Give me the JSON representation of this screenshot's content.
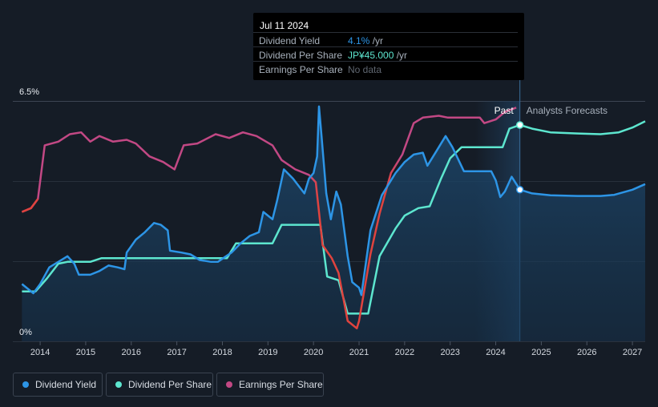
{
  "chart_data": {
    "type": "line",
    "title": "",
    "xlabel": "",
    "ylabel": "",
    "ylim": [
      0,
      6.5
    ],
    "y_tick_labels": [
      "6.5%",
      "0%"
    ],
    "x_ticks": [
      2014,
      2015,
      2016,
      2017,
      2018,
      2019,
      2020,
      2021,
      2022,
      2023,
      2024,
      2025,
      2026,
      2027
    ],
    "xlim": [
      2013.4,
      2027.28
    ],
    "grid": true,
    "past_label": "Past",
    "forecast_label": "Analysts Forecasts",
    "forecast_start": 2024.53,
    "series": [
      {
        "name": "Dividend Yield",
        "color": "#2d95e6",
        "unit": "%",
        "points": [
          [
            2013.6,
            1.55
          ],
          [
            2013.85,
            1.3
          ],
          [
            2014.0,
            1.55
          ],
          [
            2014.2,
            2.0
          ],
          [
            2014.4,
            2.15
          ],
          [
            2014.6,
            2.3
          ],
          [
            2014.75,
            2.1
          ],
          [
            2014.85,
            1.8
          ],
          [
            2015.1,
            1.8
          ],
          [
            2015.3,
            1.9
          ],
          [
            2015.5,
            2.05
          ],
          [
            2015.7,
            2.0
          ],
          [
            2015.85,
            1.95
          ],
          [
            2015.9,
            2.4
          ],
          [
            2016.1,
            2.75
          ],
          [
            2016.3,
            2.95
          ],
          [
            2016.5,
            3.2
          ],
          [
            2016.65,
            3.15
          ],
          [
            2016.8,
            3.0
          ],
          [
            2016.85,
            2.45
          ],
          [
            2017.1,
            2.4
          ],
          [
            2017.3,
            2.35
          ],
          [
            2017.5,
            2.2
          ],
          [
            2017.75,
            2.15
          ],
          [
            2017.9,
            2.15
          ],
          [
            2018.2,
            2.4
          ],
          [
            2018.4,
            2.65
          ],
          [
            2018.6,
            2.85
          ],
          [
            2018.8,
            2.95
          ],
          [
            2018.9,
            3.5
          ],
          [
            2019.1,
            3.3
          ],
          [
            2019.2,
            3.8
          ],
          [
            2019.35,
            4.65
          ],
          [
            2019.55,
            4.4
          ],
          [
            2019.8,
            4.0
          ],
          [
            2019.9,
            4.4
          ],
          [
            2020.0,
            4.55
          ],
          [
            2020.08,
            5.0
          ],
          [
            2020.12,
            6.35
          ],
          [
            2020.18,
            5.5
          ],
          [
            2020.28,
            4.0
          ],
          [
            2020.38,
            3.3
          ],
          [
            2020.5,
            4.05
          ],
          [
            2020.6,
            3.7
          ],
          [
            2020.75,
            2.3
          ],
          [
            2020.85,
            1.6
          ],
          [
            2021.0,
            1.45
          ],
          [
            2021.05,
            1.25
          ],
          [
            2021.25,
            3.0
          ],
          [
            2021.5,
            3.95
          ],
          [
            2021.8,
            4.55
          ],
          [
            2022.0,
            4.85
          ],
          [
            2022.2,
            5.05
          ],
          [
            2022.4,
            5.1
          ],
          [
            2022.5,
            4.75
          ],
          [
            2022.7,
            5.15
          ],
          [
            2022.9,
            5.55
          ],
          [
            2023.05,
            5.25
          ],
          [
            2023.3,
            4.6
          ],
          [
            2023.6,
            4.6
          ],
          [
            2023.9,
            4.6
          ],
          [
            2024.0,
            4.35
          ],
          [
            2024.1,
            3.9
          ],
          [
            2024.2,
            4.05
          ],
          [
            2024.35,
            4.45
          ],
          [
            2024.53,
            4.1
          ],
          [
            2024.8,
            4.0
          ],
          [
            2025.2,
            3.95
          ],
          [
            2025.8,
            3.93
          ],
          [
            2026.3,
            3.93
          ],
          [
            2026.6,
            3.96
          ],
          [
            2027.0,
            4.1
          ],
          [
            2027.28,
            4.25
          ]
        ]
      },
      {
        "name": "Dividend Per Share",
        "color": "#5de6cf",
        "unit": "JP¥",
        "points": [
          [
            2013.6,
            1.35
          ],
          [
            2013.9,
            1.35
          ],
          [
            2014.15,
            1.7
          ],
          [
            2014.4,
            2.1
          ],
          [
            2014.6,
            2.15
          ],
          [
            2015.1,
            2.15
          ],
          [
            2015.35,
            2.25
          ],
          [
            2016.0,
            2.25
          ],
          [
            2017.0,
            2.25
          ],
          [
            2017.5,
            2.25
          ],
          [
            2018.1,
            2.25
          ],
          [
            2018.3,
            2.65
          ],
          [
            2018.8,
            2.65
          ],
          [
            2019.1,
            2.65
          ],
          [
            2019.3,
            3.15
          ],
          [
            2019.9,
            3.15
          ],
          [
            2020.15,
            3.15
          ],
          [
            2020.3,
            1.75
          ],
          [
            2020.55,
            1.65
          ],
          [
            2020.75,
            0.75
          ],
          [
            2021.2,
            0.75
          ],
          [
            2021.45,
            2.3
          ],
          [
            2021.8,
            3.05
          ],
          [
            2022.0,
            3.4
          ],
          [
            2022.3,
            3.6
          ],
          [
            2022.55,
            3.65
          ],
          [
            2022.8,
            4.4
          ],
          [
            2023.0,
            4.95
          ],
          [
            2023.25,
            5.25
          ],
          [
            2023.6,
            5.25
          ],
          [
            2024.0,
            5.25
          ],
          [
            2024.15,
            5.25
          ],
          [
            2024.3,
            5.75
          ],
          [
            2024.53,
            5.85
          ],
          [
            2024.8,
            5.75
          ],
          [
            2025.2,
            5.65
          ],
          [
            2025.8,
            5.62
          ],
          [
            2026.3,
            5.6
          ],
          [
            2026.7,
            5.65
          ],
          [
            2027.0,
            5.78
          ],
          [
            2027.28,
            5.95
          ]
        ]
      },
      {
        "name": "Earnings Per Share",
        "color": "#c24884",
        "unit": "",
        "points": [
          [
            2013.6,
            3.5
          ],
          [
            2013.8,
            3.6
          ],
          [
            2013.95,
            3.85
          ],
          [
            2014.1,
            5.3
          ],
          [
            2014.4,
            5.4
          ],
          [
            2014.65,
            5.6
          ],
          [
            2014.9,
            5.65
          ],
          [
            2015.1,
            5.4
          ],
          [
            2015.3,
            5.55
          ],
          [
            2015.6,
            5.4
          ],
          [
            2015.9,
            5.45
          ],
          [
            2016.1,
            5.35
          ],
          [
            2016.4,
            5.0
          ],
          [
            2016.7,
            4.85
          ],
          [
            2016.95,
            4.65
          ],
          [
            2017.15,
            5.3
          ],
          [
            2017.45,
            5.35
          ],
          [
            2017.85,
            5.6
          ],
          [
            2018.15,
            5.5
          ],
          [
            2018.45,
            5.65
          ],
          [
            2018.75,
            5.55
          ],
          [
            2019.1,
            5.3
          ],
          [
            2019.3,
            4.9
          ],
          [
            2019.6,
            4.65
          ],
          [
            2019.9,
            4.5
          ],
          [
            2020.05,
            4.3
          ],
          [
            2020.2,
            2.6
          ],
          [
            2020.4,
            2.25
          ],
          [
            2020.55,
            1.85
          ],
          [
            2020.75,
            0.55
          ],
          [
            2020.95,
            0.35
          ],
          [
            2021.0,
            0.55
          ],
          [
            2021.25,
            2.35
          ],
          [
            2021.45,
            3.45
          ],
          [
            2021.7,
            4.55
          ],
          [
            2021.95,
            5.05
          ],
          [
            2022.2,
            5.9
          ],
          [
            2022.4,
            6.05
          ],
          [
            2022.75,
            6.1
          ],
          [
            2022.95,
            6.05
          ],
          [
            2023.25,
            6.05
          ],
          [
            2023.65,
            6.05
          ],
          [
            2023.75,
            5.9
          ],
          [
            2024.0,
            6.0
          ],
          [
            2024.2,
            6.2
          ],
          [
            2024.45,
            6.32
          ]
        ]
      }
    ],
    "legend_placement": "bottom-left"
  },
  "tooltip": {
    "date": "Jul 11 2024",
    "rows": [
      {
        "label": "Dividend Yield",
        "value": "4.1%",
        "unit": " /yr",
        "color": "#2d95e6"
      },
      {
        "label": "Dividend Per Share",
        "value": "JP¥45.000",
        "unit": " /yr",
        "color": "#5de6cf"
      },
      {
        "label": "Earnings Per Share",
        "value": "No data",
        "unit": "",
        "color": "#5f6670"
      }
    ]
  },
  "legend": [
    {
      "label": "Dividend Yield",
      "color": "#2d95e6"
    },
    {
      "label": "Dividend Per Share",
      "color": "#5de6cf"
    },
    {
      "label": "Earnings Per Share",
      "color": "#c24884"
    }
  ]
}
